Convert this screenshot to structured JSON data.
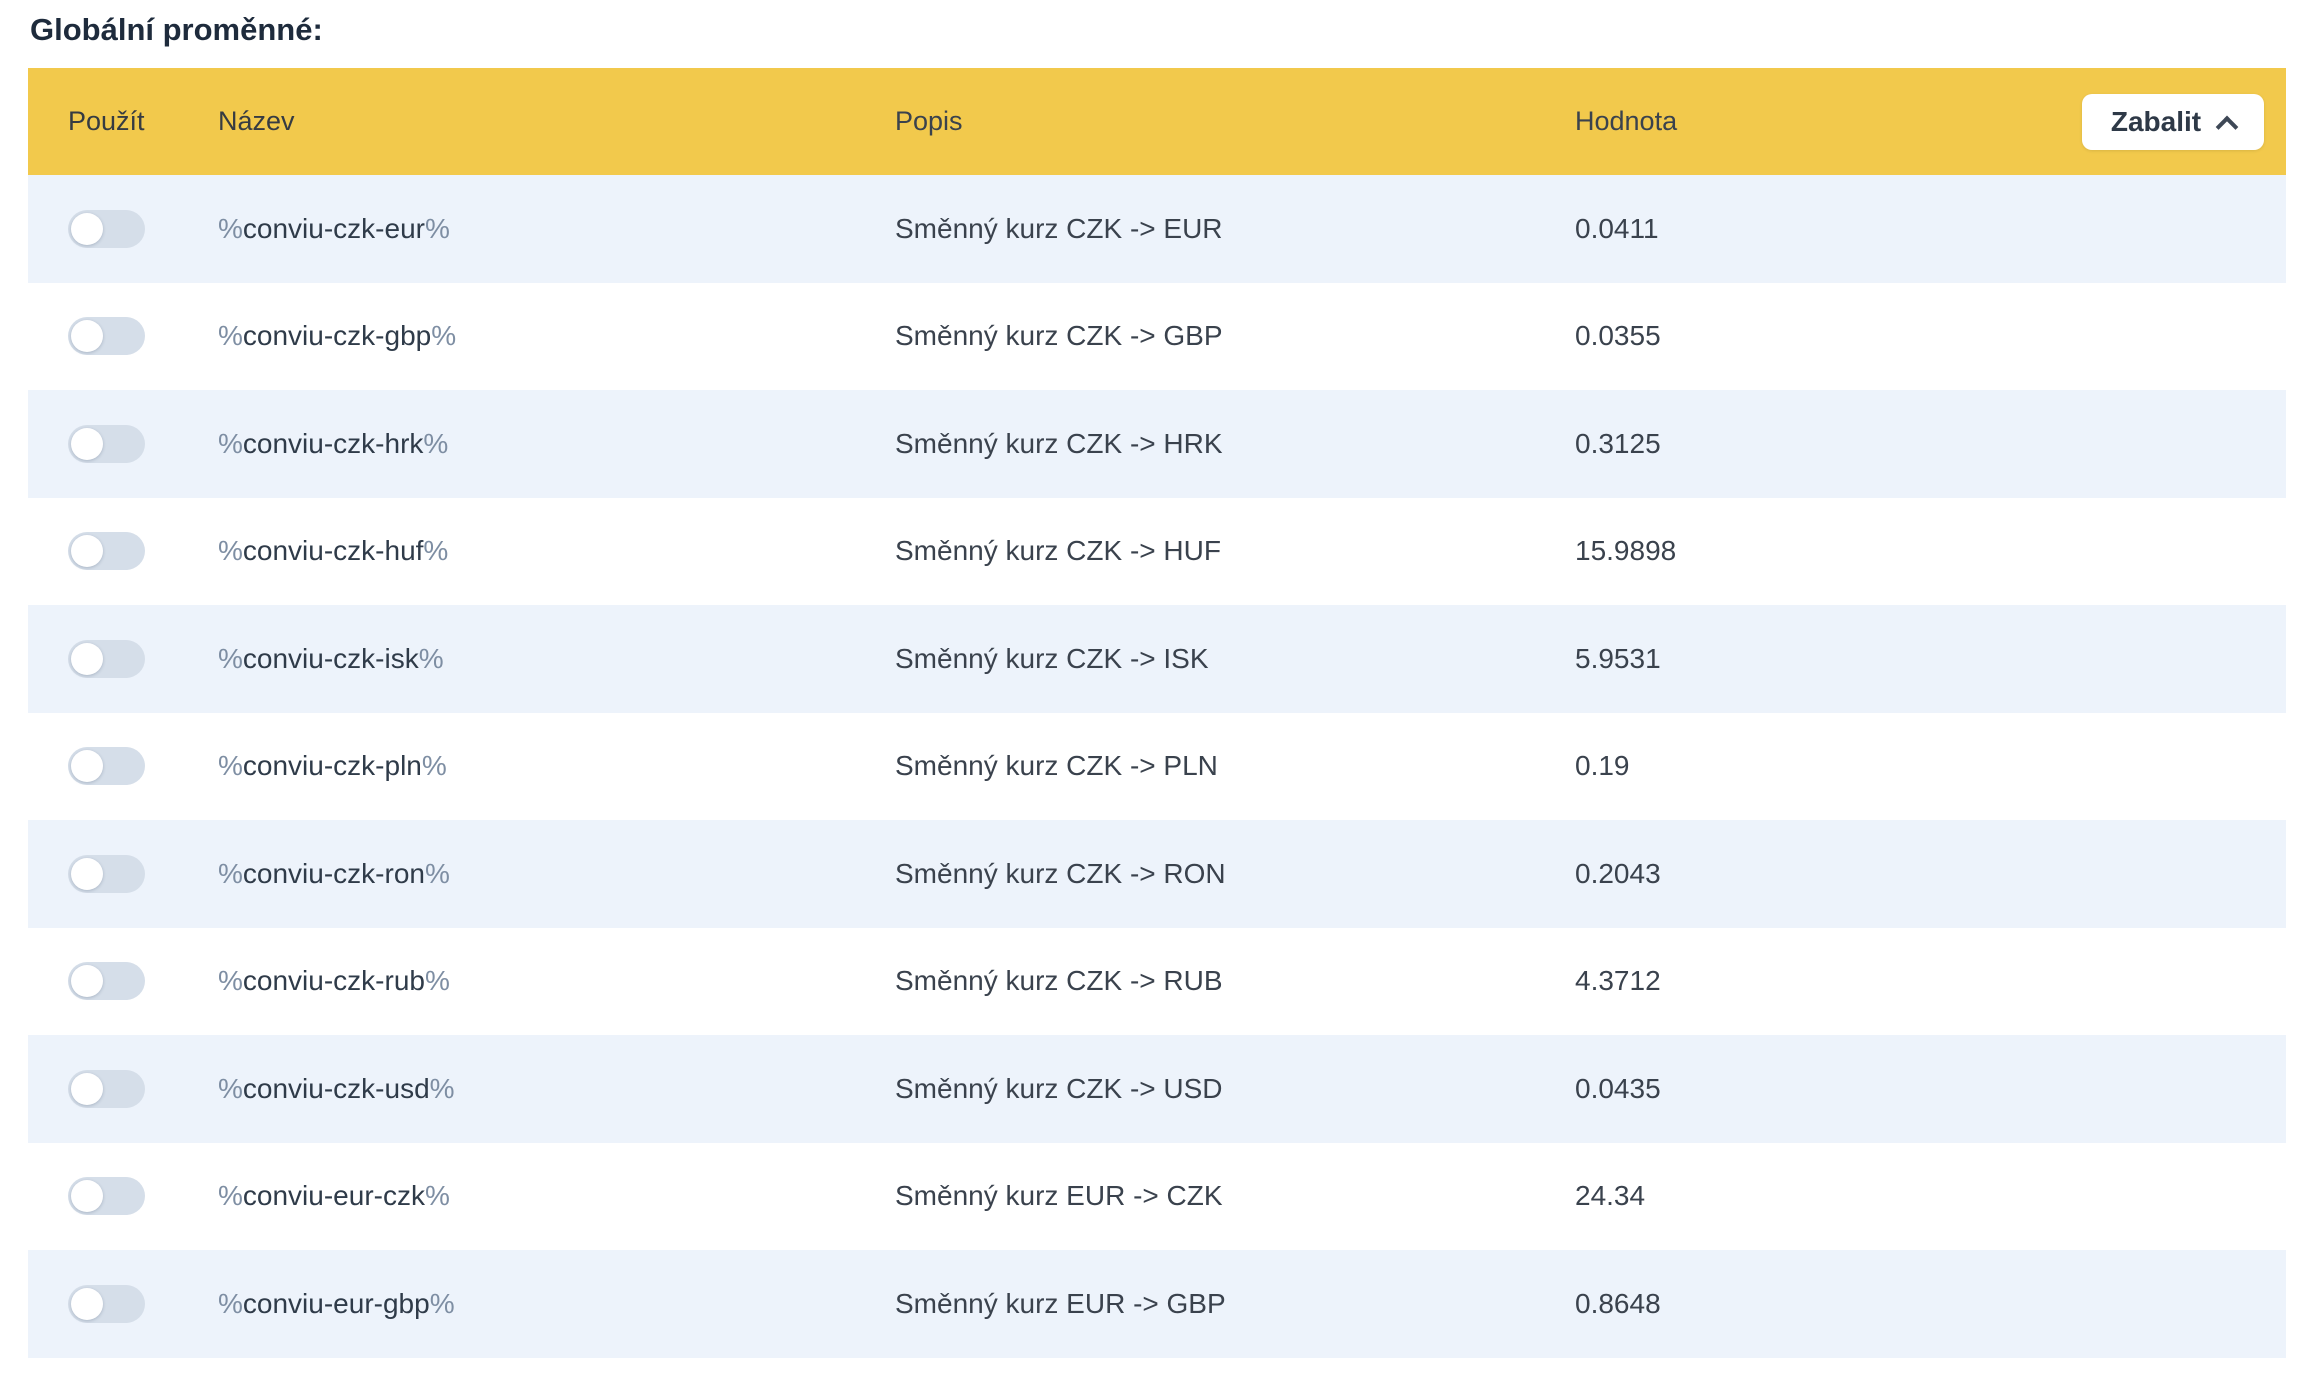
{
  "page": {
    "title": "Globální proměnné:"
  },
  "table": {
    "name_delimiter": "%",
    "header": {
      "columns": [
        "Použít",
        "Název",
        "Popis",
        "Hodnota"
      ],
      "collapse_button": {
        "label": "Zabalit",
        "icon": "chevron-up-icon"
      }
    },
    "rows": [
      {
        "name": "conviu-czk-eur",
        "description": "Směnný kurz CZK -> EUR",
        "value": "0.0411",
        "enabled": false
      },
      {
        "name": "conviu-czk-gbp",
        "description": "Směnný kurz CZK -> GBP",
        "value": "0.0355",
        "enabled": false
      },
      {
        "name": "conviu-czk-hrk",
        "description": "Směnný kurz CZK -> HRK",
        "value": "0.3125",
        "enabled": false
      },
      {
        "name": "conviu-czk-huf",
        "description": "Směnný kurz CZK -> HUF",
        "value": "15.9898",
        "enabled": false
      },
      {
        "name": "conviu-czk-isk",
        "description": "Směnný kurz CZK -> ISK",
        "value": "5.9531",
        "enabled": false
      },
      {
        "name": "conviu-czk-pln",
        "description": "Směnný kurz CZK -> PLN",
        "value": "0.19",
        "enabled": false
      },
      {
        "name": "conviu-czk-ron",
        "description": "Směnný kurz CZK -> RON",
        "value": "0.2043",
        "enabled": false
      },
      {
        "name": "conviu-czk-rub",
        "description": "Směnný kurz CZK -> RUB",
        "value": "4.3712",
        "enabled": false
      },
      {
        "name": "conviu-czk-usd",
        "description": "Směnný kurz CZK -> USD",
        "value": "0.0435",
        "enabled": false
      },
      {
        "name": "conviu-eur-czk",
        "description": "Směnný kurz EUR -> CZK",
        "value": "24.34",
        "enabled": false
      },
      {
        "name": "conviu-eur-gbp",
        "description": "Směnný kurz EUR -> GBP",
        "value": "0.8648",
        "enabled": false
      }
    ],
    "colors": {
      "header_bg": "#F2C94C",
      "row_alt_bg": "#EDF3FB",
      "toggle_track": "#D5DEE9"
    }
  }
}
